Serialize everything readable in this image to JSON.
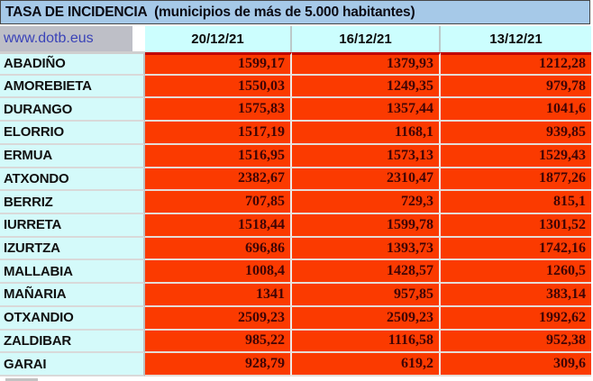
{
  "header": {
    "title": "TASA DE INCIDENCIA  (municipios de más de 5.000 habitantes)",
    "source_link": "www.dotb.eus"
  },
  "chart_data": {
    "type": "table",
    "title": "TASA DE INCIDENCIA  (municipios de más de 5.000 habitantes)",
    "columns": [
      "",
      "20/12/21",
      "16/12/21",
      "13/12/21"
    ],
    "rows": [
      {
        "name": "ABADIÑO",
        "values": [
          "1599,17",
          "1379,93",
          "1212,28"
        ]
      },
      {
        "name": "AMOREBIETA",
        "values": [
          "1550,03",
          "1249,35",
          "979,78"
        ]
      },
      {
        "name": "DURANGO",
        "values": [
          "1575,83",
          "1357,44",
          "1041,6"
        ]
      },
      {
        "name": "ELORRIO",
        "values": [
          "1517,19",
          "1168,1",
          "939,85"
        ]
      },
      {
        "name": "ERMUA",
        "values": [
          "1516,95",
          "1573,13",
          "1529,43"
        ]
      },
      {
        "name": "ATXONDO",
        "values": [
          "2382,67",
          "2310,47",
          "1877,26"
        ]
      },
      {
        "name": "BERRIZ",
        "values": [
          "707,85",
          "729,3",
          "815,1"
        ]
      },
      {
        "name": "IURRETA",
        "values": [
          "1518,44",
          "1599,78",
          "1301,52"
        ]
      },
      {
        "name": "IZURTZA",
        "values": [
          "696,86",
          "1393,73",
          "1742,16"
        ]
      },
      {
        "name": "MALLABIA",
        "values": [
          "1008,4",
          "1428,57",
          "1260,5"
        ]
      },
      {
        "name": "MAÑARIA",
        "values": [
          "1341",
          "957,85",
          "383,14"
        ]
      },
      {
        "name": "OTXANDIO",
        "values": [
          "2509,23",
          "2509,23",
          "1992,62"
        ]
      },
      {
        "name": "ZALDIBAR",
        "values": [
          "985,22",
          "1116,58",
          "952,38"
        ]
      },
      {
        "name": "GARAI",
        "values": [
          "928,79",
          "619,2",
          "309,6"
        ]
      }
    ]
  },
  "colors": {
    "title_bar_bg": "#A6C9E8",
    "title_text": "#0B0B14",
    "link_cell_bg": "#BEBFC7",
    "link_text": "#3A43B8",
    "date_bg": "#CCFEFE",
    "name_bg": "#D4FAFA",
    "name_text": "#101010",
    "value_bg": "#FB3A00",
    "value_text": "#400505",
    "header_divider": "#C00000"
  }
}
